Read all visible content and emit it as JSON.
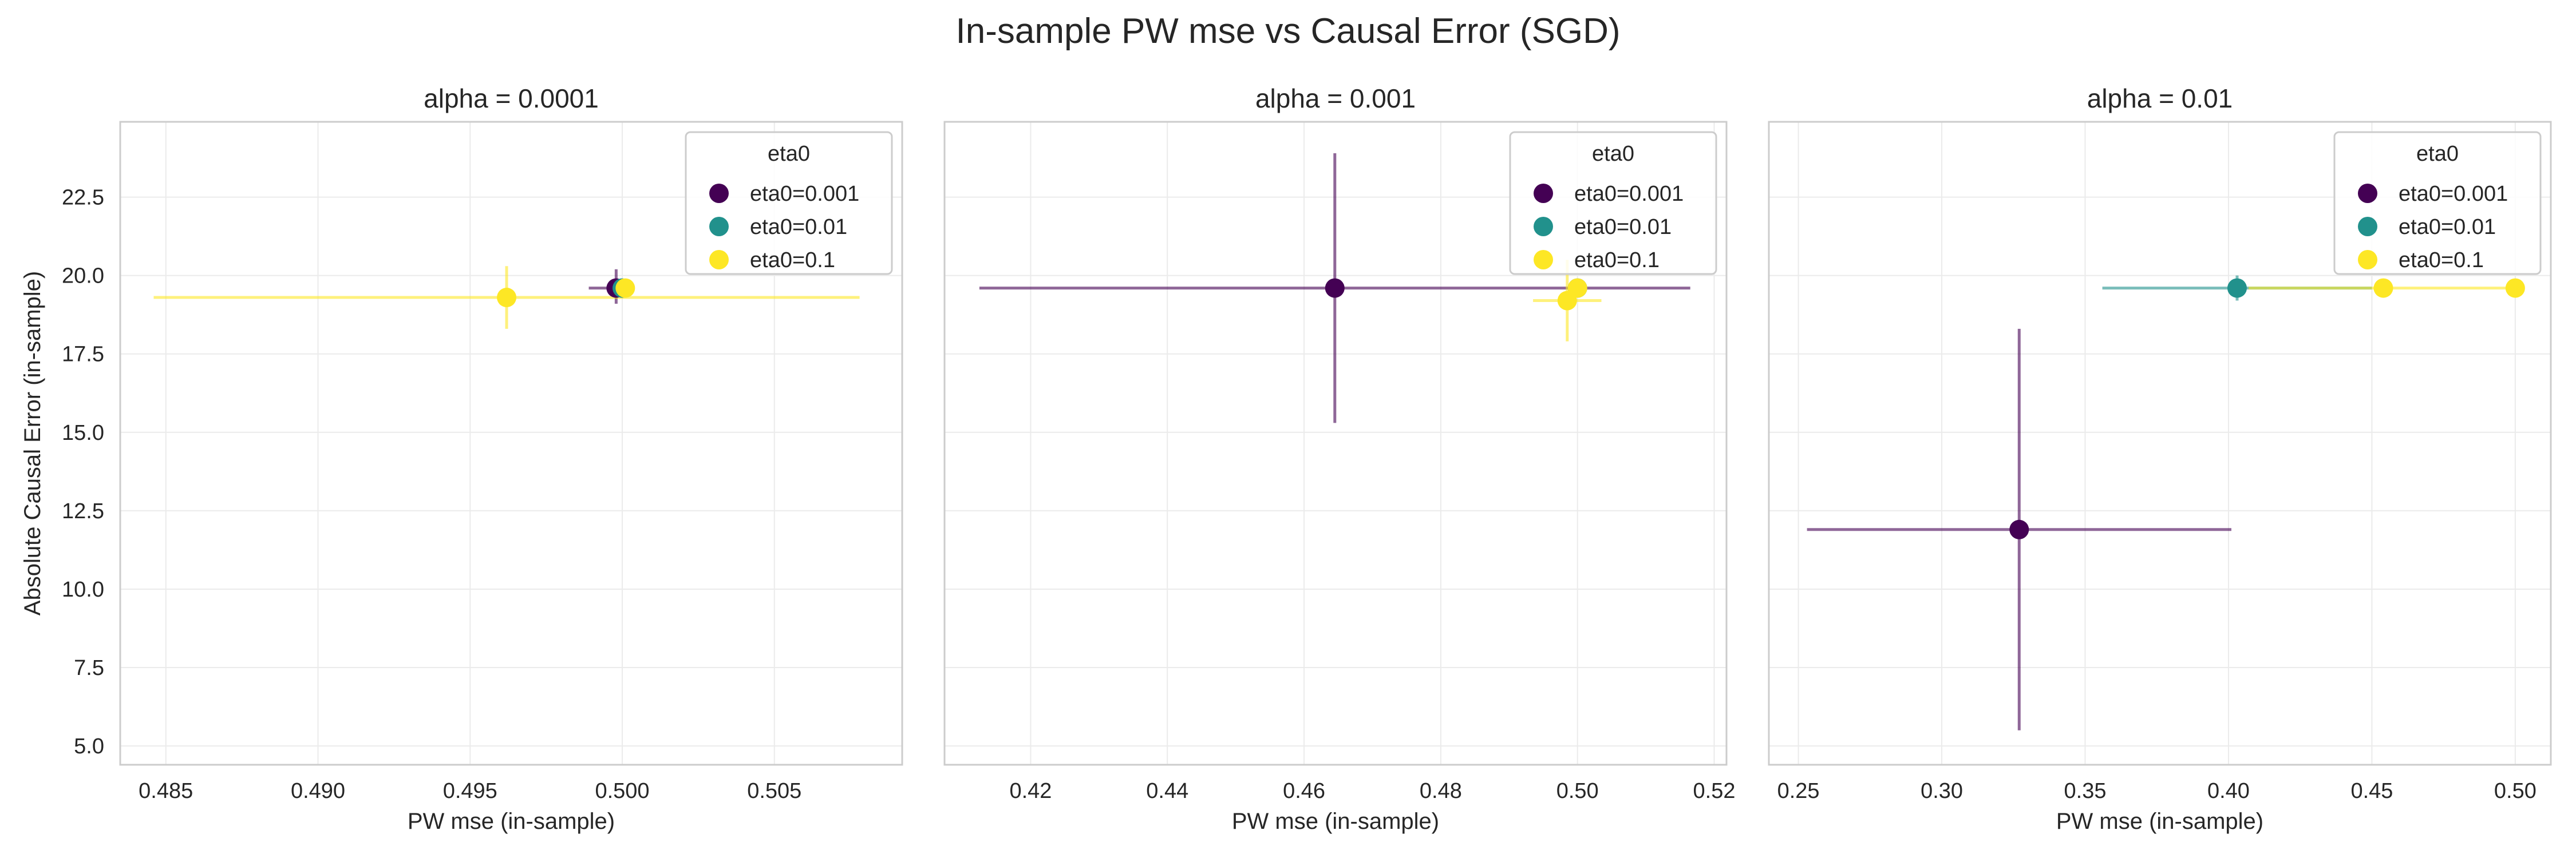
{
  "title": "In-sample PW mse vs Causal Error (SGD)",
  "colors": {
    "eta0=0.001": "#440154",
    "eta0=0.01": "#21918c",
    "eta0=0.1": "#fde725",
    "grid": "#ebebeb",
    "spine": "#cccccc"
  },
  "chart_data": [
    {
      "type": "scatter",
      "title": "alpha = 0.0001",
      "xlabel": "PW mse (in-sample)",
      "ylabel": "Absolute Causal Error (in-sample)",
      "xlim": [
        0.4835,
        0.5092
      ],
      "ylim": [
        4.4,
        24.9
      ],
      "xticks": [
        0.485,
        0.49,
        0.495,
        0.5,
        0.505
      ],
      "xtick_labels": [
        "0.485",
        "0.490",
        "0.495",
        "0.500",
        "0.505"
      ],
      "yticks": [
        5.0,
        7.5,
        10.0,
        12.5,
        15.0,
        17.5,
        20.0,
        22.5
      ],
      "ytick_labels": [
        "5.0",
        "7.5",
        "10.0",
        "12.5",
        "15.0",
        "17.5",
        "20.0",
        "22.5"
      ],
      "show_yticklabels": true,
      "grid": true,
      "legend": {
        "title": "eta0",
        "placement": "top-right",
        "entries": [
          "eta0=0.001",
          "eta0=0.01",
          "eta0=0.1"
        ]
      },
      "series": [
        {
          "name": "eta0=0.001",
          "x": 0.4998,
          "y": 19.6,
          "x_err": [
            0.4989,
            0.5004
          ],
          "y_err": [
            19.1,
            20.2
          ]
        },
        {
          "name": "eta0=0.01",
          "x": 0.5,
          "y": 19.6,
          "x_err": [
            0.4999,
            0.5001
          ],
          "y_err": [
            19.4,
            19.8
          ]
        },
        {
          "name": "eta0=0.1",
          "x": 0.4962,
          "y": 19.3,
          "x_err": [
            0.4846,
            0.5078
          ],
          "y_err": [
            18.3,
            20.3
          ]
        },
        {
          "name": "eta0=0.1",
          "x": 0.5001,
          "y": 19.6,
          "x_err": [
            0.4998,
            0.5004
          ],
          "y_err": [
            19.3,
            19.9
          ]
        }
      ]
    },
    {
      "type": "scatter",
      "title": "alpha = 0.001",
      "xlabel": "PW mse (in-sample)",
      "ylabel": "",
      "xlim": [
        0.4074,
        0.5218
      ],
      "ylim": [
        4.4,
        24.9
      ],
      "xticks": [
        0.42,
        0.44,
        0.46,
        0.48,
        0.5,
        0.52
      ],
      "xtick_labels": [
        "0.42",
        "0.44",
        "0.46",
        "0.48",
        "0.50",
        "0.52"
      ],
      "yticks": [
        5.0,
        7.5,
        10.0,
        12.5,
        15.0,
        17.5,
        20.0,
        22.5
      ],
      "ytick_labels": [],
      "show_yticklabels": false,
      "grid": true,
      "legend": {
        "title": "eta0",
        "placement": "top-right",
        "entries": [
          "eta0=0.001",
          "eta0=0.01",
          "eta0=0.1"
        ]
      },
      "series": [
        {
          "name": "eta0=0.001",
          "x": 0.4645,
          "y": 19.6,
          "x_err": [
            0.4125,
            0.5165
          ],
          "y_err": [
            15.3,
            23.9
          ]
        },
        {
          "name": "eta0=0.01",
          "x": 0.5,
          "y": 19.6,
          "x_err": [
            0.4995,
            0.5005
          ],
          "y_err": [
            19.3,
            19.9
          ]
        },
        {
          "name": "eta0=0.1",
          "x": 0.4985,
          "y": 19.2,
          "x_err": [
            0.4935,
            0.5035
          ],
          "y_err": [
            17.9,
            20.5
          ]
        },
        {
          "name": "eta0=0.1",
          "x": 0.5,
          "y": 19.6,
          "x_err": [
            0.499,
            0.501
          ],
          "y_err": [
            19.3,
            19.9
          ]
        }
      ]
    },
    {
      "type": "scatter",
      "title": "alpha = 0.01",
      "xlabel": "PW mse (in-sample)",
      "ylabel": "",
      "xlim": [
        0.2397,
        0.5124
      ],
      "ylim": [
        4.4,
        24.9
      ],
      "xticks": [
        0.25,
        0.3,
        0.35,
        0.4,
        0.45,
        0.5
      ],
      "xtick_labels": [
        "0.25",
        "0.30",
        "0.35",
        "0.40",
        "0.45",
        "0.50"
      ],
      "yticks": [
        5.0,
        7.5,
        10.0,
        12.5,
        15.0,
        17.5,
        20.0,
        22.5
      ],
      "ytick_labels": [],
      "show_yticklabels": false,
      "grid": true,
      "legend": {
        "title": "eta0",
        "placement": "top-right",
        "entries": [
          "eta0=0.001",
          "eta0=0.01",
          "eta0=0.1"
        ]
      },
      "series": [
        {
          "name": "eta0=0.001",
          "x": 0.327,
          "y": 11.9,
          "x_err": [
            0.253,
            0.401
          ],
          "y_err": [
            5.5,
            18.3
          ]
        },
        {
          "name": "eta0=0.01",
          "x": 0.403,
          "y": 19.6,
          "x_err": [
            0.356,
            0.45
          ],
          "y_err": [
            19.2,
            20.0
          ]
        },
        {
          "name": "eta0=0.1",
          "x": 0.454,
          "y": 19.6,
          "x_err": [
            0.407,
            0.5
          ],
          "y_err": [
            19.4,
            19.8
          ]
        },
        {
          "name": "eta0=0.1",
          "x": 0.5,
          "y": 19.6,
          "x_err": [
            0.499,
            0.501
          ],
          "y_err": [
            19.3,
            19.9
          ]
        }
      ]
    }
  ]
}
